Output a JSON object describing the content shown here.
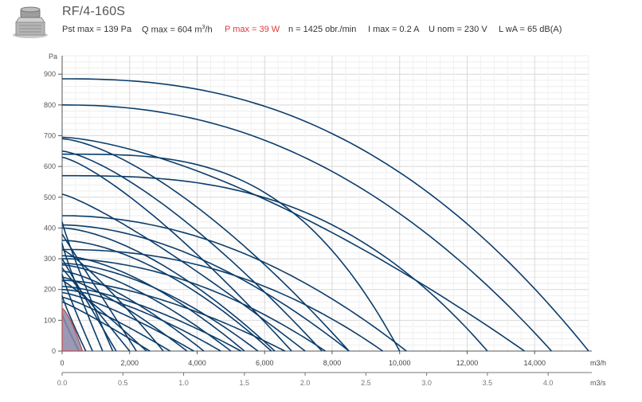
{
  "header": {
    "title": "RF/4-160S",
    "specs": {
      "pst_max": "Pst max = 139 Pa",
      "q_max_prefix": "Q max = 604 m",
      "q_max_sup": "3",
      "q_max_suffix": "/h",
      "p_max": "P max = 39 W",
      "speed": "n = 1425 obr./min",
      "i_max": "I max = 0.2 A",
      "u_nom": "U nom = 230 V",
      "lwa": "L wA = 65 dB(A)"
    },
    "icon": "roof-fan-product-icon",
    "colors": {
      "title": "#555555",
      "p_max": "#e03a3a"
    }
  },
  "chart_data": {
    "type": "line",
    "y_unit": "Pa",
    "x_unit": "m3/h",
    "x2_unit": "m3/s",
    "xlim": [
      0,
      15600
    ],
    "ylim": [
      0,
      960
    ],
    "x_ticks": [
      0,
      2000,
      4000,
      6000,
      8000,
      10000,
      12000,
      14000
    ],
    "x_tick_labels": [
      "0",
      "2,000",
      "4,000",
      "6,000",
      "8,000",
      "10,000",
      "12,000",
      "14,000"
    ],
    "y_ticks": [
      0,
      100,
      200,
      300,
      400,
      500,
      600,
      700,
      800,
      900
    ],
    "y_tick_labels": [
      "0",
      "100",
      "200",
      "300",
      "400",
      "500",
      "600",
      "700",
      "800",
      "900"
    ],
    "x2_ticks": [
      0,
      0.5,
      1.0,
      1.5,
      2.0,
      2.5,
      3.0,
      3.5,
      4.0
    ],
    "x2_tick_labels": [
      "0.0",
      "0.5",
      "1.0",
      "1.5",
      "2.0",
      "2.5",
      "3.0",
      "3.5",
      "4.0"
    ],
    "grid": true,
    "colors": {
      "curve": "#0b3d6b",
      "highlight_fill": "#8a87a6",
      "highlight_stroke": "#c24a4a",
      "grid": "#e3e3e3"
    },
    "series": [
      {
        "y0": 885,
        "x0": 15600,
        "curve": 2.4
      },
      {
        "y0": 800,
        "x0": 14500,
        "curve": 2.2
      },
      {
        "y0": 695,
        "x0": 13700,
        "curve": 1.5
      },
      {
        "y0": 640,
        "x0": 10000,
        "curve": 3.2
      },
      {
        "y0": 570,
        "x0": 12600,
        "curve": 2.8
      },
      {
        "y0": 690,
        "x0": 8500,
        "curve": 1.5
      },
      {
        "y0": 650,
        "x0": 7700,
        "curve": 1.4
      },
      {
        "y0": 630,
        "x0": 6800,
        "curve": 1.3
      },
      {
        "y0": 510,
        "x0": 7200,
        "curve": 1.2
      },
      {
        "y0": 440,
        "x0": 10200,
        "curve": 2.0
      },
      {
        "y0": 410,
        "x0": 8500,
        "curve": 1.8
      },
      {
        "y0": 400,
        "x0": 6300,
        "curve": 1.6
      },
      {
        "y0": 330,
        "x0": 9500,
        "curve": 2.2
      },
      {
        "y0": 300,
        "x0": 7800,
        "curve": 1.9
      },
      {
        "y0": 285,
        "x0": 5800,
        "curve": 1.7
      },
      {
        "y0": 280,
        "x0": 5000,
        "curve": 1.5
      },
      {
        "y0": 260,
        "x0": 4200,
        "curve": 1.4
      },
      {
        "y0": 230,
        "x0": 6600,
        "curve": 1.6
      },
      {
        "y0": 210,
        "x0": 5300,
        "curve": 1.5
      },
      {
        "y0": 190,
        "x0": 3900,
        "curve": 1.3
      },
      {
        "y0": 175,
        "x0": 3200,
        "curve": 1.2
      },
      {
        "y0": 160,
        "x0": 2600,
        "curve": 1.1
      },
      {
        "y0": 230,
        "x0": 2500,
        "curve": 1.1
      },
      {
        "y0": 270,
        "x0": 2000,
        "curve": 1.0
      },
      {
        "y0": 300,
        "x0": 1600,
        "curve": 1.0
      },
      {
        "y0": 350,
        "x0": 1200,
        "curve": 0.9
      },
      {
        "y0": 250,
        "x0": 900,
        "curve": 0.9
      },
      {
        "y0": 180,
        "x0": 700,
        "curve": 0.9
      },
      {
        "y0": 120,
        "x0": 500,
        "curve": 0.9
      },
      {
        "y0": 420,
        "x0": 1500,
        "curve": 0.9
      },
      {
        "y0": 380,
        "x0": 2200,
        "curve": 1.0
      },
      {
        "y0": 330,
        "x0": 3000,
        "curve": 1.2
      },
      {
        "y0": 240,
        "x0": 3700,
        "curve": 1.3
      },
      {
        "y0": 200,
        "x0": 4700,
        "curve": 1.5
      },
      {
        "y0": 310,
        "x0": 5400,
        "curve": 1.6
      },
      {
        "y0": 360,
        "x0": 6200,
        "curve": 1.7
      }
    ],
    "highlight": {
      "name": "RF/4-160S",
      "pst_max": 139,
      "q_max": 604
    }
  }
}
